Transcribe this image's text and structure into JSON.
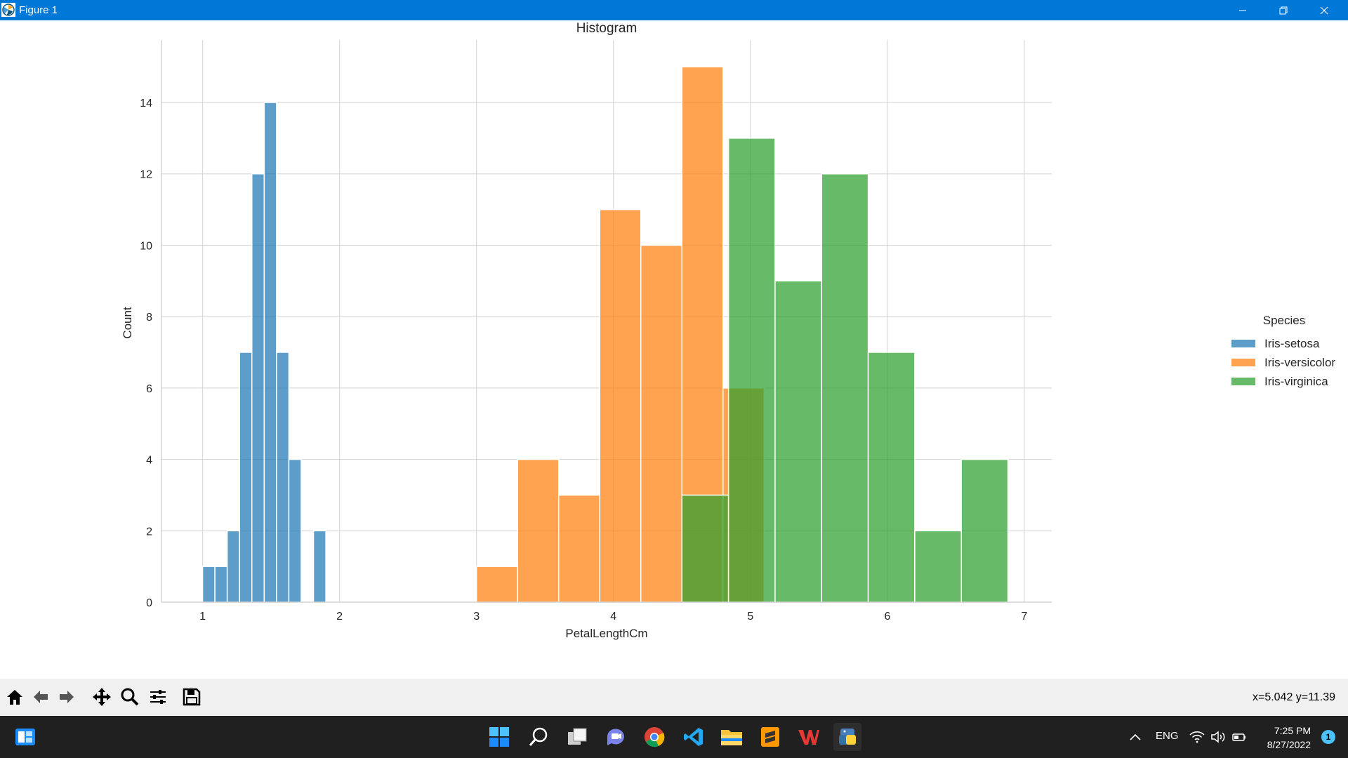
{
  "window": {
    "title": "Figure 1",
    "icon": "matplotlib-icon"
  },
  "chart_data": {
    "type": "bar",
    "title": "Histogram",
    "xlabel": "PetalLengthCm",
    "ylabel": "Count",
    "xlim": [
      0.7,
      7.2
    ],
    "ylim": [
      0,
      15.75
    ],
    "xticks": [
      1,
      2,
      3,
      4,
      5,
      6,
      7
    ],
    "yticks": [
      0,
      2,
      4,
      6,
      8,
      10,
      12,
      14
    ],
    "grid": true,
    "legend": {
      "title": "Species",
      "placement": "right"
    },
    "series": [
      {
        "name": "Iris-setosa",
        "color": "#1f77b4",
        "bins": [
          {
            "x0": 1.0,
            "x1": 1.09,
            "count": 1
          },
          {
            "x0": 1.09,
            "x1": 1.18,
            "count": 1
          },
          {
            "x0": 1.18,
            "x1": 1.27,
            "count": 2
          },
          {
            "x0": 1.27,
            "x1": 1.36,
            "count": 7
          },
          {
            "x0": 1.36,
            "x1": 1.45,
            "count": 12
          },
          {
            "x0": 1.45,
            "x1": 1.54,
            "count": 14
          },
          {
            "x0": 1.54,
            "x1": 1.63,
            "count": 7
          },
          {
            "x0": 1.63,
            "x1": 1.72,
            "count": 4
          },
          {
            "x0": 1.72,
            "x1": 1.81,
            "count": 0
          },
          {
            "x0": 1.81,
            "x1": 1.9,
            "count": 2
          }
        ]
      },
      {
        "name": "Iris-versicolor",
        "color": "#ff7f0e",
        "bins": [
          {
            "x0": 3.0,
            "x1": 3.3,
            "count": 1
          },
          {
            "x0": 3.3,
            "x1": 3.6,
            "count": 4
          },
          {
            "x0": 3.6,
            "x1": 3.9,
            "count": 3
          },
          {
            "x0": 3.9,
            "x1": 4.2,
            "count": 11
          },
          {
            "x0": 4.2,
            "x1": 4.5,
            "count": 10
          },
          {
            "x0": 4.5,
            "x1": 4.8,
            "count": 15
          },
          {
            "x0": 4.8,
            "x1": 5.1,
            "count": 6
          }
        ]
      },
      {
        "name": "Iris-virginica",
        "color": "#2ca02c",
        "bins": [
          {
            "x0": 4.5,
            "x1": 4.84,
            "count": 3
          },
          {
            "x0": 4.84,
            "x1": 5.18,
            "count": 13
          },
          {
            "x0": 5.18,
            "x1": 5.52,
            "count": 9
          },
          {
            "x0": 5.52,
            "x1": 5.86,
            "count": 12
          },
          {
            "x0": 5.86,
            "x1": 6.2,
            "count": 7
          },
          {
            "x0": 6.2,
            "x1": 6.54,
            "count": 2
          },
          {
            "x0": 6.54,
            "x1": 6.88,
            "count": 4
          }
        ]
      }
    ]
  },
  "toolbar": {
    "buttons": [
      {
        "name": "home-button",
        "icon": "home-icon"
      },
      {
        "name": "back-button",
        "icon": "arrow-left-icon"
      },
      {
        "name": "forward-button",
        "icon": "arrow-right-icon"
      },
      {
        "name": "pan-button",
        "icon": "move-icon"
      },
      {
        "name": "zoom-button",
        "icon": "magnifier-icon"
      },
      {
        "name": "configure-subplots-button",
        "icon": "sliders-icon"
      },
      {
        "name": "save-button",
        "icon": "floppy-disk-icon"
      }
    ],
    "coords": "x=5.042 y=11.39"
  },
  "taskbar": {
    "apps": [
      "windows-start-icon",
      "search-icon",
      "task-view-icon",
      "teams-chat-icon",
      "chrome-icon",
      "vscode-icon",
      "file-explorer-icon",
      "sublime-text-icon",
      "wps-office-icon",
      "python-icon"
    ],
    "language": "ENG",
    "time": "7:25 PM",
    "date": "8/27/2022",
    "notification_count": "1"
  }
}
